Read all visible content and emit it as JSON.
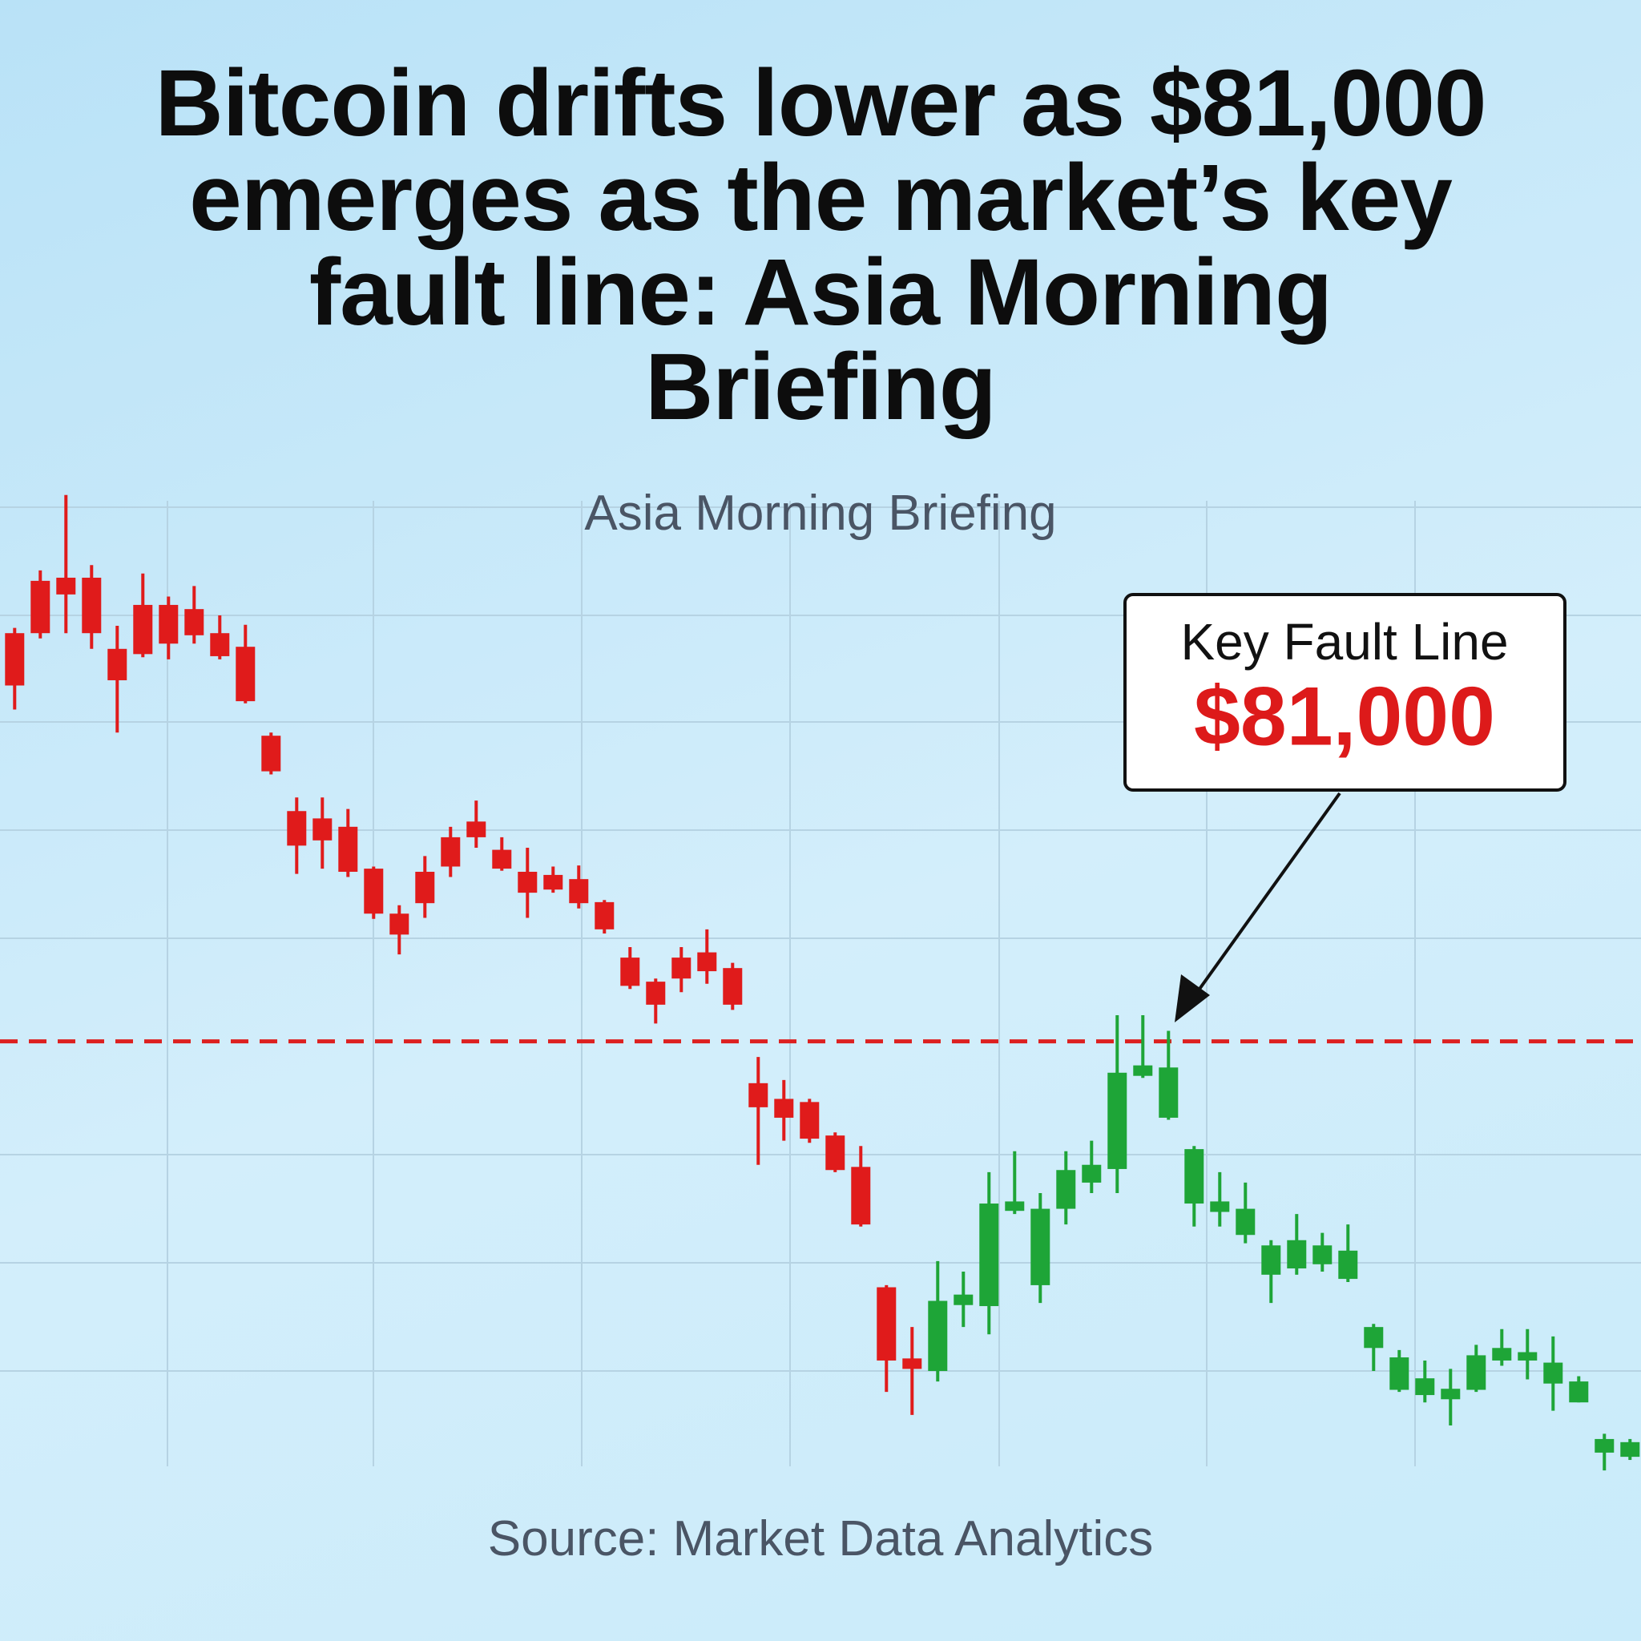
{
  "chart_data": {
    "type": "candlestick",
    "title": "Bitcoin drifts lower as $81,000 emerges as the market’s key fault line: Asia Morning Briefing",
    "subtitle": "Asia Morning Briefing",
    "source": "Source: Market Data Analytics",
    "ylim": [
      76800,
      86300
    ],
    "fault_line": {
      "value": 81000,
      "color": "#dd2020",
      "label": "Key Fault Line",
      "value_label": "$81,000"
    },
    "series": [
      {
        "color": "#e01b1b",
        "open": [
          84900,
          85400,
          85430,
          85430,
          84750,
          85170,
          85170,
          85130,
          84900,
          84770,
          83920,
          83200,
          83130,
          83050,
          82650,
          82220,
          82620,
          82950,
          83100,
          82830,
          82620,
          82590,
          82550,
          82330,
          81800,
          81570,
          81800,
          81850,
          81700,
          80600,
          80450,
          80420,
          80100,
          79800,
          78650,
          77970
        ],
        "high": [
          84950,
          85500,
          86220,
          85550,
          84970,
          85470,
          85250,
          85350,
          85070,
          84980,
          83950,
          83330,
          83330,
          83220,
          82670,
          82300,
          82770,
          83050,
          83300,
          82950,
          82850,
          82670,
          82680,
          82350,
          81900,
          81600,
          81900,
          82070,
          81750,
          80850,
          80630,
          80450,
          80130,
          80000,
          78670,
          78270
        ],
        "low": [
          84170,
          84850,
          84900,
          84750,
          83950,
          84670,
          84650,
          84800,
          84650,
          84230,
          83550,
          82600,
          82650,
          82570,
          82170,
          81830,
          82180,
          82570,
          82850,
          82630,
          82180,
          82420,
          82270,
          82030,
          81500,
          81170,
          81470,
          81550,
          81300,
          79820,
          80050,
          80030,
          79750,
          79230,
          77650,
          77430
        ],
        "close": [
          84400,
          84900,
          85270,
          84900,
          84450,
          84700,
          84800,
          84880,
          84680,
          84250,
          83580,
          82870,
          82920,
          82620,
          82220,
          82020,
          82320,
          82670,
          82950,
          82650,
          82420,
          82450,
          82320,
          82070,
          81530,
          81350,
          81600,
          81670,
          81350,
          80370,
          80270,
          80070,
          79770,
          79250,
          77950,
          77870
        ]
      },
      {
        "color": "#1ea537",
        "open": [
          77850,
          78480,
          78470,
          79380,
          78670,
          79400,
          79650,
          79780,
          80670,
          80270,
          79450,
          79370,
          79150,
          78770,
          78830,
          78870,
          78730,
          78070,
          77670,
          77620,
          77580,
          77670,
          77950,
          77950,
          77730,
          77550,
          77070,
          77030
        ],
        "high": [
          78900,
          78800,
          79750,
          79950,
          79550,
          79950,
          80050,
          81250,
          81250,
          81100,
          80000,
          79750,
          79650,
          79100,
          79350,
          79170,
          79250,
          78300,
          78050,
          77950,
          77870,
          78100,
          78250,
          78250,
          78180,
          77800,
          77250,
          77200
        ],
        "low": [
          77750,
          78270,
          78200,
          79350,
          78500,
          79250,
          79550,
          79550,
          80650,
          80250,
          79230,
          79230,
          79070,
          78500,
          78770,
          78800,
          78700,
          77850,
          77650,
          77550,
          77330,
          77650,
          77900,
          77770,
          77470,
          77550,
          76900,
          77000
        ],
        "close": [
          78520,
          78580,
          79450,
          79470,
          79400,
          79770,
          79820,
          80700,
          80770,
          80750,
          79970,
          79470,
          79400,
          79050,
          79100,
          79050,
          79000,
          78270,
          77980,
          77780,
          77680,
          78000,
          78070,
          78030,
          77930,
          77750,
          77200,
          77170
        ]
      }
    ]
  }
}
